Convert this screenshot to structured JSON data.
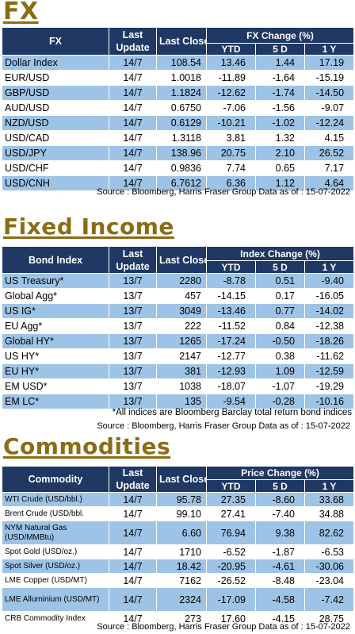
{
  "fx": {
    "title": "FX",
    "headers": {
      "name": "FX",
      "last_update": "Last Update",
      "last_close": "Last Close",
      "change_group": "FX Change (%)",
      "ytd": "YTD",
      "d5": "5 D",
      "y1": "1 Y"
    },
    "rows": [
      {
        "name": "Dollar Index",
        "update": "14/7",
        "close": "108.54",
        "ytd": "13.46",
        "d5": "1.44",
        "y1": "17.19"
      },
      {
        "name": "EUR/USD",
        "update": "14/7",
        "close": "1.0018",
        "ytd": "-11.89",
        "d5": "-1.64",
        "y1": "-15.19"
      },
      {
        "name": "GBP/USD",
        "update": "14/7",
        "close": "1.1824",
        "ytd": "-12.62",
        "d5": "-1.74",
        "y1": "-14.50"
      },
      {
        "name": "AUD/USD",
        "update": "14/7",
        "close": "0.6750",
        "ytd": "-7.06",
        "d5": "-1.56",
        "y1": "-9.07"
      },
      {
        "name": "NZD/USD",
        "update": "14/7",
        "close": "0.6129",
        "ytd": "-10.21",
        "d5": "-1.02",
        "y1": "-12.24"
      },
      {
        "name": "USD/CAD",
        "update": "14/7",
        "close": "1.3118",
        "ytd": "3.81",
        "d5": "1.32",
        "y1": "4.15"
      },
      {
        "name": "USD/JPY",
        "update": "14/7",
        "close": "138.96",
        "ytd": "20.75",
        "d5": "2.10",
        "y1": "26.52"
      },
      {
        "name": "USD/CHF",
        "update": "14/7",
        "close": "0.9836",
        "ytd": "7.74",
        "d5": "0.65",
        "y1": "7.17"
      },
      {
        "name": "USD/CNH",
        "update": "14/7",
        "close": "6.7612",
        "ytd": "6.36",
        "d5": "1.12",
        "y1": "4.64"
      }
    ],
    "source": "Source : Bloomberg, Harris Fraser Group Data as of : 15-07-2022"
  },
  "fixed_income": {
    "title": "Fixed Income",
    "headers": {
      "name": "Bond Index",
      "last_update": "Last Update",
      "last_close": "Last Close",
      "change_group": "Index Change (%)",
      "ytd": "YTD",
      "d5": "5 D",
      "y1": "1 Y"
    },
    "rows": [
      {
        "name": "US Treasury*",
        "update": "13/7",
        "close": "2280",
        "ytd": "-8.78",
        "d5": "0.51",
        "y1": "-9.40"
      },
      {
        "name": "Global Agg*",
        "update": "13/7",
        "close": "457",
        "ytd": "-14.15",
        "d5": "0.17",
        "y1": "-16.05"
      },
      {
        "name": "US IG*",
        "update": "13/7",
        "close": "3049",
        "ytd": "-13.46",
        "d5": "0.77",
        "y1": "-14.02"
      },
      {
        "name": "EU Agg*",
        "update": "13/7",
        "close": "222",
        "ytd": "-11.52",
        "d5": "0.84",
        "y1": "-12.38"
      },
      {
        "name": "Global HY*",
        "update": "13/7",
        "close": "1265",
        "ytd": "-17.24",
        "d5": "-0.50",
        "y1": "-18.26"
      },
      {
        "name": "US HY*",
        "update": "13/7",
        "close": "2147",
        "ytd": "-12.77",
        "d5": "0.38",
        "y1": "-11.62"
      },
      {
        "name": "EU HY*",
        "update": "13/7",
        "close": "381",
        "ytd": "-12.93",
        "d5": "1.09",
        "y1": "-12.59"
      },
      {
        "name": "EM USD*",
        "update": "13/7",
        "close": "1038",
        "ytd": "-18.07",
        "d5": "-1.07",
        "y1": "-19.29"
      },
      {
        "name": "EM LC*",
        "update": "13/7",
        "close": "135",
        "ytd": "-9.54",
        "d5": "-0.28",
        "y1": "-10.16"
      }
    ],
    "footnote": "*All indices are Bloomberg Barclay total return bond indices",
    "source": "Source : Bloomberg, Harris Fraser Group Data as of : 15-07-2022"
  },
  "commodities": {
    "title": "Commodities",
    "headers": {
      "name": "Commodity",
      "last_update": "Last Update",
      "last_close": "Last Close",
      "change_group": "Price Change (%)",
      "ytd": "YTD",
      "d5": "5 D",
      "y1": "1 Y"
    },
    "rows": [
      {
        "name": "WTI Crude (USD/bbl.)",
        "update": "14/7",
        "close": "95.78",
        "ytd": "27.35",
        "d5": "-8.60",
        "y1": "33.68"
      },
      {
        "name": "Brent Crude (USD/bbl.",
        "update": "14/7",
        "close": "99.10",
        "ytd": "27.41",
        "d5": "-7.40",
        "y1": "34.88"
      },
      {
        "name": "NYM Natural Gas (USD/MMBtu)",
        "update": "14/7",
        "close": "6.60",
        "ytd": "76.94",
        "d5": "9.38",
        "y1": "82.62"
      },
      {
        "name": "Spot Gold (USD/oz.)",
        "update": "14/7",
        "close": "1710",
        "ytd": "-6.52",
        "d5": "-1.87",
        "y1": "-6.53"
      },
      {
        "name": "Spot Silver (USD/oz.)",
        "update": "14/7",
        "close": "18.42",
        "ytd": "-20.95",
        "d5": "-4.61",
        "y1": "-30.06"
      },
      {
        "name": "LME Copper (USD/MT)",
        "update": "14/7",
        "close": "7162",
        "ytd": "-26.52",
        "d5": "-8.48",
        "y1": "-23.04"
      },
      {
        "name": "LME Alluminium (USD/MT)",
        "update": "14/7",
        "close": "2324",
        "ytd": "-17.09",
        "d5": "-4.58",
        "y1": "-7.42"
      },
      {
        "name": "CRB Commodity Index",
        "update": "14/7",
        "close": "273",
        "ytd": "17.60",
        "d5": "-4.15",
        "y1": "28.75"
      }
    ],
    "source": "Source : Bloomberg, Harris Fraser Group Data as of : 15-07-2022"
  },
  "colors": {
    "header_bg": "#1f3864",
    "row_blue": "#9dc3e6",
    "title_gold": "#8a6d14"
  }
}
